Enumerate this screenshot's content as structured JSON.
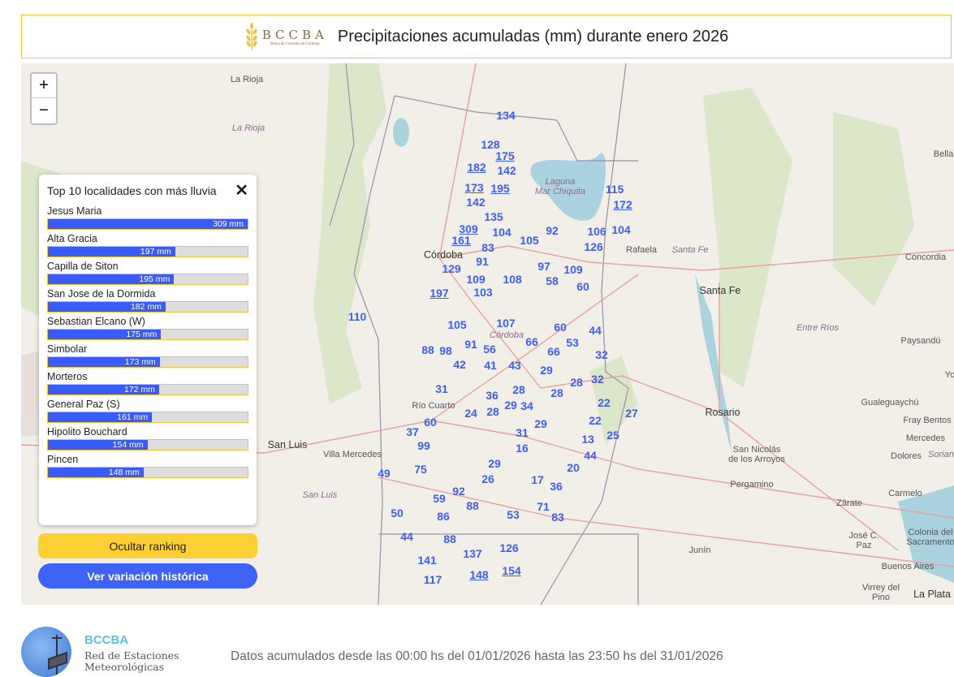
{
  "header": {
    "logo_text": "BCCBA",
    "logo_subtext": "Bolsa de Cereales de Córdoba",
    "title": "Precipitaciones acumuladas (mm) durante enero 2026"
  },
  "map": {
    "zoom_in": "+",
    "zoom_out": "−",
    "places": [
      "La Rioja",
      "La Rioja",
      "Laguna",
      "Mar Chiquita",
      "Córdoba",
      "Rafaela",
      "Santa Fe",
      "Santa Fe",
      "Concordia",
      "Córdoba",
      "Entre Ríos",
      "Paysandú",
      "Río Cuarto",
      "San Luis",
      "Villa Mercedes",
      "San Luis",
      "Rosario",
      "Gualeguaychú",
      "Fray Bentos",
      "San Nicolás de los Arroyos",
      "Mercedes",
      "Dolores",
      "Soriano",
      "Pergamino",
      "Carmelo",
      "Zárate",
      "Junín",
      "José C. Paz",
      "Colonia del Sacramento",
      "Buenos Aires",
      "Virrey del Pino",
      "La Plata",
      "Bella",
      "Yo"
    ],
    "stations": [
      {
        "value": "134",
        "top10": false
      },
      {
        "value": "128",
        "top10": false
      },
      {
        "value": "175",
        "top10": true
      },
      {
        "value": "182",
        "top10": true
      },
      {
        "value": "142",
        "top10": false
      },
      {
        "value": "173",
        "top10": true
      },
      {
        "value": "195",
        "top10": true
      },
      {
        "value": "142",
        "top10": false
      },
      {
        "value": "135",
        "top10": false
      },
      {
        "value": "309",
        "top10": true
      },
      {
        "value": "104",
        "top10": false
      },
      {
        "value": "105",
        "top10": false
      },
      {
        "value": "92",
        "top10": false
      },
      {
        "value": "106",
        "top10": false
      },
      {
        "value": "104",
        "top10": false
      },
      {
        "value": "126",
        "top10": false
      },
      {
        "value": "115",
        "top10": false
      },
      {
        "value": "172",
        "top10": true
      },
      {
        "value": "161",
        "top10": true
      },
      {
        "value": "83",
        "top10": false
      },
      {
        "value": "91",
        "top10": false
      },
      {
        "value": "129",
        "top10": false
      },
      {
        "value": "109",
        "top10": false
      },
      {
        "value": "97",
        "top10": false
      },
      {
        "value": "109",
        "top10": false
      },
      {
        "value": "58",
        "top10": false
      },
      {
        "value": "60",
        "top10": false
      },
      {
        "value": "108",
        "top10": false
      },
      {
        "value": "103",
        "top10": false
      },
      {
        "value": "197",
        "top10": true
      },
      {
        "value": "110",
        "top10": false
      },
      {
        "value": "105",
        "top10": false
      },
      {
        "value": "107",
        "top10": false
      },
      {
        "value": "60",
        "top10": false
      },
      {
        "value": "44",
        "top10": false
      },
      {
        "value": "66",
        "top10": false
      },
      {
        "value": "53",
        "top10": false
      },
      {
        "value": "88",
        "top10": false
      },
      {
        "value": "98",
        "top10": false
      },
      {
        "value": "91",
        "top10": false
      },
      {
        "value": "56",
        "top10": false
      },
      {
        "value": "66",
        "top10": false
      },
      {
        "value": "32",
        "top10": false
      },
      {
        "value": "42",
        "top10": false
      },
      {
        "value": "41",
        "top10": false
      },
      {
        "value": "43",
        "top10": false
      },
      {
        "value": "29",
        "top10": false
      },
      {
        "value": "28",
        "top10": false
      },
      {
        "value": "32",
        "top10": false
      },
      {
        "value": "31",
        "top10": false
      },
      {
        "value": "36",
        "top10": false
      },
      {
        "value": "28",
        "top10": false
      },
      {
        "value": "28",
        "top10": false
      },
      {
        "value": "29",
        "top10": false
      },
      {
        "value": "34",
        "top10": false
      },
      {
        "value": "22",
        "top10": false
      },
      {
        "value": "24",
        "top10": false
      },
      {
        "value": "28",
        "top10": false
      },
      {
        "value": "22",
        "top10": false
      },
      {
        "value": "27",
        "top10": false
      },
      {
        "value": "60",
        "top10": false
      },
      {
        "value": "29",
        "top10": false
      },
      {
        "value": "37",
        "top10": false
      },
      {
        "value": "31",
        "top10": false
      },
      {
        "value": "13",
        "top10": false
      },
      {
        "value": "25",
        "top10": false
      },
      {
        "value": "99",
        "top10": false
      },
      {
        "value": "16",
        "top10": false
      },
      {
        "value": "44",
        "top10": false
      },
      {
        "value": "29",
        "top10": false
      },
      {
        "value": "20",
        "top10": false
      },
      {
        "value": "49",
        "top10": false
      },
      {
        "value": "75",
        "top10": false
      },
      {
        "value": "26",
        "top10": false
      },
      {
        "value": "17",
        "top10": false
      },
      {
        "value": "36",
        "top10": false
      },
      {
        "value": "92",
        "top10": false
      },
      {
        "value": "59",
        "top10": false
      },
      {
        "value": "88",
        "top10": false
      },
      {
        "value": "53",
        "top10": false
      },
      {
        "value": "71",
        "top10": false
      },
      {
        "value": "83",
        "top10": false
      },
      {
        "value": "50",
        "top10": false
      },
      {
        "value": "86",
        "top10": false
      },
      {
        "value": "44",
        "top10": false
      },
      {
        "value": "88",
        "top10": false
      },
      {
        "value": "137",
        "top10": false
      },
      {
        "value": "126",
        "top10": false
      },
      {
        "value": "141",
        "top10": false
      },
      {
        "value": "148",
        "top10": true
      },
      {
        "value": "154",
        "top10": true
      },
      {
        "value": "117",
        "top10": false
      }
    ]
  },
  "ranking": {
    "title": "Top 10 localidades con más lluvia",
    "close": "✕",
    "max": 309,
    "items": [
      {
        "name": "Jesus Maria",
        "value": 309,
        "label": "309 mm"
      },
      {
        "name": "Alta Gracia",
        "value": 197,
        "label": "197 mm"
      },
      {
        "name": "Capilla de Siton",
        "value": 195,
        "label": "195 mm"
      },
      {
        "name": "San Jose de la Dormida",
        "value": 182,
        "label": "182 mm"
      },
      {
        "name": "Sebastian Elcano (W)",
        "value": 175,
        "label": "175 mm"
      },
      {
        "name": "Simbolar",
        "value": 173,
        "label": "173 mm"
      },
      {
        "name": "Morteros",
        "value": 172,
        "label": "172 mm"
      },
      {
        "name": "General Paz (S)",
        "value": 161,
        "label": "161 mm"
      },
      {
        "name": "Hipolito Bouchard",
        "value": 154,
        "label": "154 mm"
      },
      {
        "name": "Pincen",
        "value": 148,
        "label": "148 mm"
      }
    ]
  },
  "buttons": {
    "hide_ranking": "Ocultar ranking",
    "historic": "Ver variación histórica"
  },
  "footer": {
    "brand": "BCCBA",
    "subtitle": "Red de Estaciones Meteorológicas",
    "info": "Datos acumulados desde las 00:00 hs del 01/01/2026 hasta las 23:50 hs del 31/01/2026"
  },
  "colors": {
    "station": "#3f5df0",
    "bar": "#3a5cf6",
    "accent": "#fdd133",
    "button_blue": "#3d62f4"
  }
}
